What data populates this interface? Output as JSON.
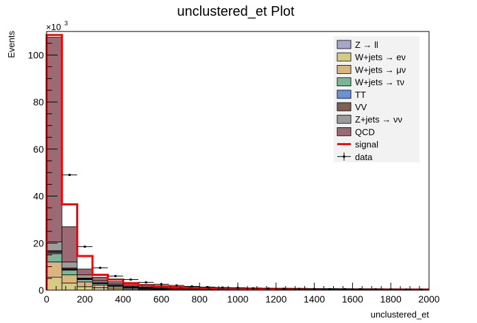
{
  "chart_data": {
    "type": "bar",
    "title": "unclustered_et Plot",
    "xlabel": "unclustered_et",
    "ylabel": "Events",
    "y_multiplier": "×10",
    "y_multiplier_exp": "3",
    "xlim": [
      0,
      2000
    ],
    "ylim": [
      0,
      110
    ],
    "x_ticks": [
      0,
      200,
      400,
      600,
      800,
      1000,
      1200,
      1400,
      1600,
      1800,
      2000
    ],
    "y_ticks": [
      0,
      20,
      40,
      60,
      80,
      100
    ],
    "grid": false,
    "legend_position": "top-right",
    "bin_edges": [
      0,
      80,
      160,
      240,
      320,
      400,
      480,
      560,
      640,
      720,
      800,
      880,
      960,
      1040,
      1120,
      1200,
      1280,
      1360,
      1440,
      1520,
      1600,
      1680,
      1760,
      1840,
      1920,
      2000
    ],
    "stack_series": [
      {
        "name": "W+jets → eν",
        "color": "#d4cc85",
        "values": [
          5.5,
          3.0,
          1.5,
          1.0,
          0.6,
          0.4,
          0.3,
          0.2,
          0.15,
          0.1,
          0.08,
          0.06,
          0.05,
          0.04,
          0.03,
          0.03,
          0.02,
          0.02,
          0.02,
          0.01,
          0.01,
          0.01,
          0.01,
          0.01,
          0.01
        ]
      },
      {
        "name": "W+jets → μν",
        "color": "#d9b582",
        "values": [
          6.5,
          3.5,
          2.0,
          1.2,
          0.8,
          0.5,
          0.35,
          0.25,
          0.2,
          0.15,
          0.1,
          0.08,
          0.06,
          0.05,
          0.04,
          0.03,
          0.03,
          0.02,
          0.02,
          0.02,
          0.01,
          0.01,
          0.01,
          0.01,
          0.01
        ]
      },
      {
        "name": "W+jets → τν",
        "color": "#7bb497",
        "values": [
          3.5,
          2.0,
          1.0,
          0.6,
          0.4,
          0.3,
          0.2,
          0.15,
          0.1,
          0.08,
          0.06,
          0.05,
          0.04,
          0.03,
          0.02,
          0.02,
          0.02,
          0.01,
          0.01,
          0.01,
          0.01,
          0.01,
          0.01,
          0.01,
          0.01
        ]
      },
      {
        "name": "Z → ll",
        "color": "#a6a6c9",
        "values": [
          0.5,
          0.3,
          0.2,
          0.1,
          0.08,
          0.05,
          0.04,
          0.03,
          0.02,
          0.02,
          0.01,
          0.01,
          0.01,
          0.01,
          0.01,
          0.0,
          0.0,
          0.0,
          0.0,
          0.0,
          0.0,
          0.0,
          0.0,
          0.0,
          0.0
        ]
      },
      {
        "name": "TT",
        "color": "#6f8fd4",
        "values": [
          0.3,
          0.2,
          0.15,
          0.1,
          0.08,
          0.05,
          0.04,
          0.03,
          0.02,
          0.02,
          0.01,
          0.01,
          0.01,
          0.01,
          0.01,
          0.0,
          0.0,
          0.0,
          0.0,
          0.0,
          0.0,
          0.0,
          0.0,
          0.0,
          0.0
        ]
      },
      {
        "name": "VV",
        "color": "#7e5f56",
        "values": [
          0.5,
          0.4,
          0.3,
          0.2,
          0.15,
          0.1,
          0.08,
          0.06,
          0.05,
          0.04,
          0.03,
          0.02,
          0.02,
          0.01,
          0.01,
          0.01,
          0.01,
          0.01,
          0.0,
          0.0,
          0.0,
          0.0,
          0.0,
          0.0,
          0.0
        ]
      },
      {
        "name": "Z+jets → νν",
        "color": "#9c9c9c",
        "values": [
          3.7,
          2.6,
          1.35,
          0.8,
          0.49,
          0.35,
          0.24,
          0.2,
          0.11,
          0.07,
          0.08,
          0.07,
          0.06,
          0.04,
          0.03,
          0.03,
          0.02,
          0.02,
          0.02,
          0.02,
          0.02,
          0.01,
          0.01,
          0.01,
          0.0
        ]
      },
      {
        "name": "QCD",
        "color": "#9b6a72",
        "values": [
          87.0,
          15.0,
          2.5,
          1.4,
          1.0,
          0.85,
          0.6,
          0.45,
          0.35,
          0.28,
          0.2,
          0.15,
          0.12,
          0.1,
          0.08,
          0.06,
          0.05,
          0.04,
          0.03,
          0.03,
          0.02,
          0.02,
          0.02,
          0.01,
          0.01
        ]
      }
    ],
    "signal": {
      "name": "signal",
      "color": "#ff0000",
      "values": [
        108.5,
        36.5,
        14.5,
        6.5,
        4.5,
        3.0,
        2.2,
        1.7,
        1.3,
        1.1,
        0.9,
        0.8,
        0.7,
        0.65,
        0.6,
        0.55,
        0.5,
        0.45,
        0.42,
        0.4,
        0.38,
        0.35,
        0.33,
        0.3,
        0.28
      ]
    },
    "data": {
      "name": "data",
      "x": [
        120,
        200,
        280,
        360,
        440,
        520,
        600,
        680,
        760,
        840,
        920,
        1000,
        1080,
        1160,
        1240,
        1320,
        1400,
        1480,
        1560,
        1640,
        1720,
        1800,
        1880,
        1960
      ],
      "y": [
        49.0,
        18.5,
        9.5,
        6.0,
        4.5,
        3.3,
        2.5,
        2.0,
        1.6,
        1.3,
        1.1,
        1.0,
        0.8,
        0.7,
        0.6,
        0.55,
        0.5,
        0.45,
        0.4,
        0.37,
        0.34,
        0.3,
        0.28,
        0.25
      ]
    },
    "legend_order": [
      "Z → ll",
      "W+jets → eν",
      "W+jets → μν",
      "W+jets → τν",
      "TT",
      "VV",
      "Z+jets → νν",
      "QCD",
      "signal",
      "data"
    ]
  }
}
